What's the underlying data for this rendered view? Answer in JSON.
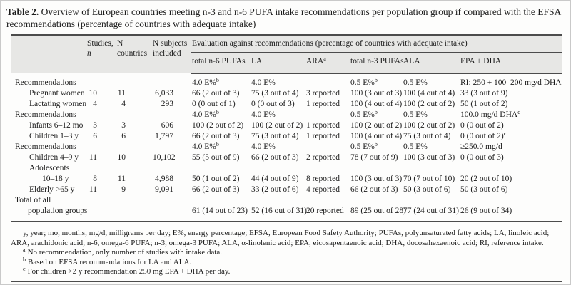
{
  "title": {
    "label": "Table 2.",
    "text": "Overview of European countries meeting n-3 and n-6 PUFA intake recommendations per population group if compared with the EFSA recommendations (percentage of countries with adequate intake)"
  },
  "table": {
    "header": {
      "studies_line1": "Studies,",
      "studies_line2": "n",
      "n_countries": "N countries",
      "n_subjects": "N subjects included",
      "evaluation_span": "Evaluation against recommendations (percentage of countries with adequate intake)",
      "columns": [
        "total n-6 PUFAs",
        "LA",
        {
          "text": "ARA",
          "sup": "a"
        },
        "total n-3 PUFAs",
        "ALA",
        "EPA + DHA"
      ]
    },
    "rows": [
      {
        "label": "Recommendations",
        "indent": 0,
        "cells": [
          "",
          "",
          "",
          {
            "text": "4.0 E%",
            "sup": "b"
          },
          "4.0 E%",
          "–",
          {
            "text": "0.5 E%",
            "sup": "b"
          },
          "0.5 E%",
          "RI: 250 + 100–200 mg/d DHA"
        ]
      },
      {
        "label": "Pregnant women",
        "indent": 1,
        "cells": [
          "10",
          "11",
          "6,033",
          "66 (2 out of 3)",
          "75 (3 out of 4)",
          "3 reported",
          "100 (3 out of 3)",
          "100 (4 out of 4)",
          "33 (3 out of 9)"
        ]
      },
      {
        "label": "Lactating women",
        "indent": 1,
        "cells": [
          "4",
          "4",
          "293",
          "0 (0 out of 1)",
          "0 (0 out of 3)",
          "1 reported",
          "100 (4 out of 4)",
          "100 (2 out of 2)",
          "50 (1 out of 2)"
        ]
      },
      {
        "label": "Recommendations",
        "indent": 0,
        "cells": [
          "",
          "",
          "",
          {
            "text": "4.0 E%",
            "sup": "b"
          },
          "4.0 E%",
          "–",
          {
            "text": "0.5 E%",
            "sup": "b"
          },
          "0.5 E%",
          {
            "text": "100.0 mg/d DHA",
            "sup": "c"
          }
        ]
      },
      {
        "label": "Infants 6–12 mo",
        "indent": 1,
        "cells": [
          "3",
          "3",
          "606",
          "100 (2 out of 2)",
          "100 (2 out of 2)",
          "1 reported",
          "100 (2 out of 2)",
          "100 (2 out of 2)",
          "0 (0 out of 2)"
        ]
      },
      {
        "label": "Children 1–3 y",
        "indent": 1,
        "cells": [
          "6",
          "6",
          "1,797",
          "66 (2 out of 3)",
          "75 (3 out of 4)",
          "1 reported",
          "100 (4 out of 4)",
          "75 (3 out of 4)",
          {
            "text": "0 (0 out of 2)",
            "sup": "c"
          }
        ]
      },
      {
        "label": "Recommendations",
        "indent": 0,
        "cells": [
          "",
          "",
          "",
          {
            "text": "4.0 E%",
            "sup": "b"
          },
          "4.0 E%",
          "–",
          {
            "text": "0.5 E%",
            "sup": "b"
          },
          "0.5 E%",
          "≥250.0 mg/d"
        ]
      },
      {
        "label": "Children 4–9 y",
        "indent": 1,
        "cells": [
          "11",
          "10",
          "10,102",
          "55 (5 out of 9)",
          "66 (2 out of 3)",
          "2 reported",
          "78 (7 out of 9)",
          "100 (3 out of 3)",
          "0 (0 out of 3)"
        ]
      },
      {
        "label": "Adolescents",
        "label2": "10–18 y",
        "indent": 1,
        "cells": [
          "8",
          "11",
          "4,988",
          "50 (1 out of 2)",
          "44 (4 out of 9)",
          "8 reported",
          "100 (3 out of 3)",
          "70 (7 out of 10)",
          "20 (2 out of 10)"
        ]
      },
      {
        "label": "Elderly >65 y",
        "indent": 1,
        "cells": [
          "11",
          "9",
          "9,091",
          "66 (2 out of 3)",
          "33 (2 out of 6)",
          "4 reported",
          "66 (2 out of 3)",
          "50 (3 out of 6)",
          "50 (3 out of 6)"
        ]
      },
      {
        "label": "Total of all",
        "label2": "population groups",
        "indent": 0,
        "cells": [
          "",
          "",
          "",
          "61 (14 out of 23)",
          "52 (16 out of 31)",
          "20 reported",
          "89 (25 out of 28)",
          "77 (24 out of 31)",
          "26 (9 out of 34)"
        ]
      }
    ]
  },
  "footnotes": {
    "abbreviations": "y, year; mo, months; mg/d, milligrams per day; E%, energy percentage; EFSA, European Food Safety Authority; PUFAs, polyunsaturated fatty acids; LA, linoleic acid; ARA, arachidonic acid; n-6, omega-6 PUFA; n-3, omega-3 PUFA; ALA, α-linolenic acid; EPA, eicosapentaenoic acid; DHA, docosahexaenoic acid; RI, reference intake.",
    "notes": [
      {
        "marker": "a",
        "text": "No recommendation, only number of studies with intake data."
      },
      {
        "marker": "b",
        "text": "Based on EFSA recommendations for LA and ALA."
      },
      {
        "marker": "c",
        "text": "For children >2 y recommendation 250 mg EPA + DHA per day."
      }
    ]
  },
  "colors": {
    "header_band": "#e7e7e5",
    "rule": "#4c4c4c",
    "text": "#1c1c1c",
    "page_border": "#c9c9c9"
  }
}
